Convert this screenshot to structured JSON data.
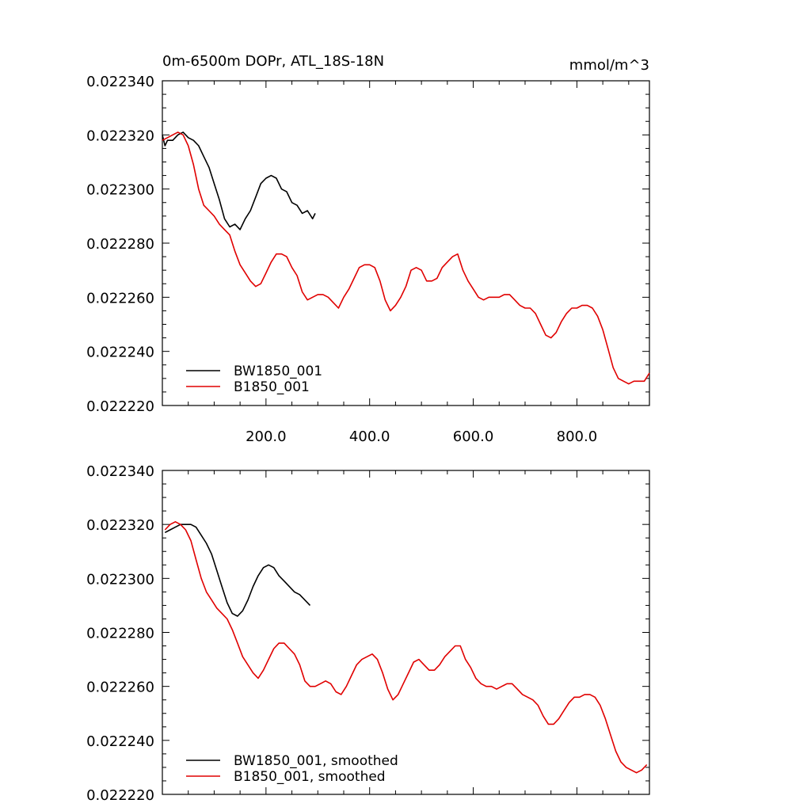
{
  "chart_data": [
    {
      "type": "line",
      "title": "0m-6500m DOPr, ATL_18S-18N",
      "units": "mmol/m^3",
      "xlabel": "",
      "ylabel": "",
      "xlim": [
        0,
        940
      ],
      "ylim": [
        0.02222,
        0.02234
      ],
      "x_ticks": [
        200,
        400,
        600,
        800
      ],
      "x_tick_labels": [
        "200.0",
        "400.0",
        "600.0",
        "800.0"
      ],
      "y_ticks": [
        0.02222,
        0.02224,
        0.02226,
        0.02228,
        0.0223,
        0.02232,
        0.02234
      ],
      "y_tick_labels": [
        "0.022220",
        "0.022240",
        "0.022260",
        "0.022280",
        "0.022300",
        "0.022320",
        "0.022340"
      ],
      "grid": false,
      "legend_position": "bottom-left",
      "series": [
        {
          "name": "BW1850_001",
          "color": "#000000",
          "x": [
            0,
            5,
            10,
            20,
            30,
            40,
            50,
            60,
            70,
            80,
            90,
            100,
            110,
            120,
            130,
            140,
            150,
            160,
            170,
            180,
            190,
            200,
            210,
            220,
            230,
            240,
            250,
            260,
            270,
            280,
            290,
            295
          ],
          "y": [
            0.02232,
            0.022316,
            0.022318,
            0.022318,
            0.02232,
            0.022321,
            0.022319,
            0.022318,
            0.022316,
            0.022312,
            0.022308,
            0.022302,
            0.022296,
            0.022289,
            0.022286,
            0.022287,
            0.022285,
            0.022289,
            0.022292,
            0.022297,
            0.022302,
            0.022304,
            0.022305,
            0.022304,
            0.0223,
            0.022299,
            0.022295,
            0.022294,
            0.022291,
            0.022292,
            0.022289,
            0.022291
          ]
        },
        {
          "name": "B1850_001",
          "color": "#e00000",
          "x": [
            0,
            10,
            20,
            30,
            40,
            50,
            60,
            70,
            80,
            90,
            100,
            110,
            120,
            130,
            140,
            150,
            160,
            170,
            180,
            190,
            200,
            210,
            220,
            230,
            240,
            250,
            260,
            270,
            280,
            290,
            300,
            310,
            320,
            330,
            340,
            350,
            360,
            370,
            380,
            390,
            400,
            410,
            420,
            430,
            440,
            450,
            460,
            470,
            480,
            490,
            500,
            510,
            520,
            530,
            540,
            550,
            560,
            570,
            580,
            590,
            600,
            610,
            620,
            630,
            640,
            650,
            660,
            670,
            680,
            690,
            700,
            710,
            720,
            730,
            740,
            750,
            760,
            770,
            780,
            790,
            800,
            810,
            820,
            830,
            840,
            850,
            860,
            870,
            880,
            890,
            900,
            910,
            920,
            930,
            940
          ],
          "y": [
            0.022318,
            0.022319,
            0.02232,
            0.022321,
            0.02232,
            0.022316,
            0.022309,
            0.0223,
            0.022294,
            0.022292,
            0.02229,
            0.022287,
            0.022285,
            0.022283,
            0.022277,
            0.022272,
            0.022269,
            0.022266,
            0.022264,
            0.022265,
            0.022269,
            0.022273,
            0.022276,
            0.022276,
            0.022275,
            0.022271,
            0.022268,
            0.022262,
            0.022259,
            0.02226,
            0.022261,
            0.022261,
            0.02226,
            0.022258,
            0.022256,
            0.02226,
            0.022263,
            0.022267,
            0.022271,
            0.022272,
            0.022272,
            0.022271,
            0.022266,
            0.022259,
            0.022255,
            0.022257,
            0.02226,
            0.022264,
            0.02227,
            0.022271,
            0.02227,
            0.022266,
            0.022266,
            0.022267,
            0.022271,
            0.022273,
            0.022275,
            0.022276,
            0.02227,
            0.022266,
            0.022263,
            0.02226,
            0.022259,
            0.02226,
            0.02226,
            0.02226,
            0.022261,
            0.022261,
            0.022259,
            0.022257,
            0.022256,
            0.022256,
            0.022254,
            0.02225,
            0.022246,
            0.022245,
            0.022247,
            0.022251,
            0.022254,
            0.022256,
            0.022256,
            0.022257,
            0.022257,
            0.022256,
            0.022253,
            0.022248,
            0.022241,
            0.022234,
            0.02223,
            0.022229,
            0.022228,
            0.022229,
            0.022229,
            0.022229,
            0.022232
          ]
        }
      ]
    },
    {
      "type": "line",
      "title": "",
      "xlabel": "",
      "ylabel": "",
      "xlim": [
        0,
        940
      ],
      "ylim": [
        0.02222,
        0.02234
      ],
      "y_ticks": [
        0.02222,
        0.02224,
        0.02226,
        0.02228,
        0.0223,
        0.02232,
        0.02234
      ],
      "y_tick_labels": [
        "0.022220",
        "0.022240",
        "0.022260",
        "0.022280",
        "0.022300",
        "0.022320",
        "0.022340"
      ],
      "grid": false,
      "legend_position": "bottom-left",
      "series": [
        {
          "name": "BW1850_001, smoothed",
          "color": "#000000",
          "x": [
            5,
            15,
            25,
            35,
            45,
            55,
            65,
            75,
            85,
            95,
            105,
            115,
            125,
            135,
            145,
            155,
            165,
            175,
            185,
            195,
            205,
            215,
            225,
            235,
            245,
            255,
            265,
            275,
            285
          ],
          "y": [
            0.022317,
            0.022318,
            0.022319,
            0.02232,
            0.02232,
            0.02232,
            0.022319,
            0.022316,
            0.022313,
            0.022309,
            0.022303,
            0.022297,
            0.022291,
            0.022287,
            0.022286,
            0.022288,
            0.022292,
            0.022297,
            0.022301,
            0.022304,
            0.022305,
            0.022304,
            0.022301,
            0.022299,
            0.022297,
            0.022295,
            0.022294,
            0.022292,
            0.02229
          ]
        },
        {
          "name": "B1850_001, smoothed",
          "color": "#e00000",
          "x": [
            5,
            15,
            25,
            35,
            45,
            55,
            65,
            75,
            85,
            95,
            105,
            115,
            125,
            135,
            145,
            155,
            165,
            175,
            185,
            195,
            205,
            215,
            225,
            235,
            245,
            255,
            265,
            275,
            285,
            295,
            305,
            315,
            325,
            335,
            345,
            355,
            365,
            375,
            385,
            395,
            405,
            415,
            425,
            435,
            445,
            455,
            465,
            475,
            485,
            495,
            505,
            515,
            525,
            535,
            545,
            555,
            565,
            575,
            585,
            595,
            605,
            615,
            625,
            635,
            645,
            655,
            665,
            675,
            685,
            695,
            705,
            715,
            725,
            735,
            745,
            755,
            765,
            775,
            785,
            795,
            805,
            815,
            825,
            835,
            845,
            855,
            865,
            875,
            885,
            895,
            905,
            915,
            925,
            935
          ],
          "y": [
            0.022318,
            0.02232,
            0.022321,
            0.02232,
            0.022318,
            0.022314,
            0.022307,
            0.0223,
            0.022295,
            0.022292,
            0.022289,
            0.022287,
            0.022285,
            0.022281,
            0.022276,
            0.022271,
            0.022268,
            0.022265,
            0.022263,
            0.022266,
            0.02227,
            0.022274,
            0.022276,
            0.022276,
            0.022274,
            0.022272,
            0.022268,
            0.022262,
            0.02226,
            0.02226,
            0.022261,
            0.022262,
            0.022261,
            0.022258,
            0.022257,
            0.02226,
            0.022264,
            0.022268,
            0.02227,
            0.022271,
            0.022272,
            0.02227,
            0.022265,
            0.022259,
            0.022255,
            0.022257,
            0.022261,
            0.022265,
            0.022269,
            0.02227,
            0.022268,
            0.022266,
            0.022266,
            0.022268,
            0.022271,
            0.022273,
            0.022275,
            0.022275,
            0.02227,
            0.022267,
            0.022263,
            0.022261,
            0.02226,
            0.02226,
            0.022259,
            0.02226,
            0.022261,
            0.022261,
            0.022259,
            0.022257,
            0.022256,
            0.022255,
            0.022253,
            0.022249,
            0.022246,
            0.022246,
            0.022248,
            0.022251,
            0.022254,
            0.022256,
            0.022256,
            0.022257,
            0.022257,
            0.022256,
            0.022253,
            0.022248,
            0.022242,
            0.022236,
            0.022232,
            0.02223,
            0.022229,
            0.022228,
            0.022229,
            0.022231
          ]
        }
      ]
    }
  ]
}
